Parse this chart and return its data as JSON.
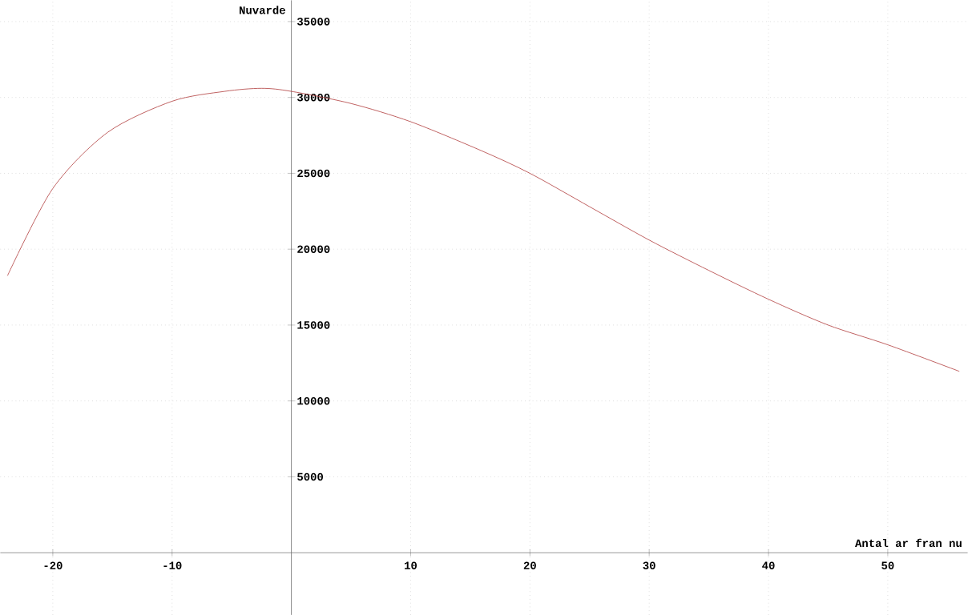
{
  "chart_data": {
    "type": "line",
    "xlabel": "Antal ar fran nu",
    "ylabel": "Nuvarde",
    "x": [
      -23.8,
      -20,
      -15.4,
      -10,
      -5.6,
      -2.5,
      0,
      5,
      10,
      15.9,
      20,
      25,
      30,
      35,
      40,
      45,
      50,
      56
    ],
    "values": [
      18250,
      24000,
      27700,
      29750,
      30400,
      30600,
      30400,
      29600,
      28400,
      26500,
      25000,
      22800,
      20600,
      18600,
      16700,
      15000,
      13700,
      11950
    ],
    "color": "#b03a3a",
    "xlim": [
      -24.4,
      56.7
    ],
    "ylim": [
      -4100,
      36400
    ],
    "xticks": [
      -20,
      -10,
      10,
      20,
      30,
      40,
      50
    ],
    "yticks": [
      5000,
      10000,
      15000,
      20000,
      25000,
      30000,
      35000
    ],
    "grid": true,
    "marker": "none",
    "line_style": "solid"
  }
}
